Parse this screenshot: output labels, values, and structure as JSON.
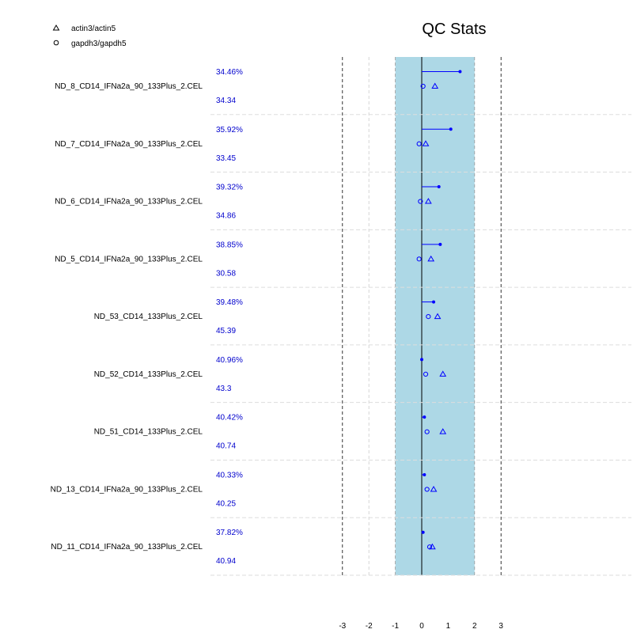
{
  "chart_data": {
    "type": "scatter",
    "title": "QC Stats",
    "xlabel": "",
    "ylabel": "",
    "xlim": [
      -4,
      8
    ],
    "x_ticks": [
      "-3",
      "-2",
      "-1",
      "0",
      "1",
      "2",
      "3"
    ],
    "shaded_band": [
      -1,
      2
    ],
    "colors": {
      "band": "#add8e6",
      "marks": "#0000ff",
      "labels": "#0000cd",
      "text": "#000000",
      "separator": "#dddddd"
    },
    "legend": [
      {
        "marker": "triangle",
        "label": "actin3/actin5"
      },
      {
        "marker": "circle",
        "label": "gapdh3/gapdh5"
      }
    ],
    "arrays": [
      {
        "name": "ND_8_CD14_IFNa2a_90_133Plus_2.CEL",
        "percent_present": "34.46%",
        "average_background": "34.34",
        "scale_factor": 1.45,
        "actin": 0.5,
        "gapdh": 0.05
      },
      {
        "name": "ND_7_CD14_IFNa2a_90_133Plus_2.CEL",
        "percent_present": "35.92%",
        "average_background": "33.45",
        "scale_factor": 1.1,
        "actin": 0.15,
        "gapdh": -0.1
      },
      {
        "name": "ND_6_CD14_IFNa2a_90_133Plus_2.CEL",
        "percent_present": "39.32%",
        "average_background": "34.86",
        "scale_factor": 0.65,
        "actin": 0.25,
        "gapdh": -0.05
      },
      {
        "name": "ND_5_CD14_IFNa2a_90_133Plus_2.CEL",
        "percent_present": "38.85%",
        "average_background": "30.58",
        "scale_factor": 0.7,
        "actin": 0.35,
        "gapdh": -0.1
      },
      {
        "name": "ND_53_CD14_133Plus_2.CEL",
        "percent_present": "39.48%",
        "average_background": "45.39",
        "scale_factor": 0.45,
        "actin": 0.6,
        "gapdh": 0.25
      },
      {
        "name": "ND_52_CD14_133Plus_2.CEL",
        "percent_present": "40.96%",
        "average_background": "43.3",
        "scale_factor": 0.0,
        "actin": 0.8,
        "gapdh": 0.15
      },
      {
        "name": "ND_51_CD14_133Plus_2.CEL",
        "percent_present": "40.42%",
        "average_background": "40.74",
        "scale_factor": 0.1,
        "actin": 0.8,
        "gapdh": 0.2
      },
      {
        "name": "ND_13_CD14_IFNa2a_90_133Plus_2.CEL",
        "percent_present": "40.33%",
        "average_background": "40.25",
        "scale_factor": 0.1,
        "actin": 0.45,
        "gapdh": 0.2
      },
      {
        "name": "ND_11_CD14_IFNa2a_90_133Plus_2.CEL",
        "percent_present": "37.82%",
        "average_background": "40.94",
        "scale_factor": 0.05,
        "actin": 0.4,
        "gapdh": 0.3
      }
    ]
  }
}
